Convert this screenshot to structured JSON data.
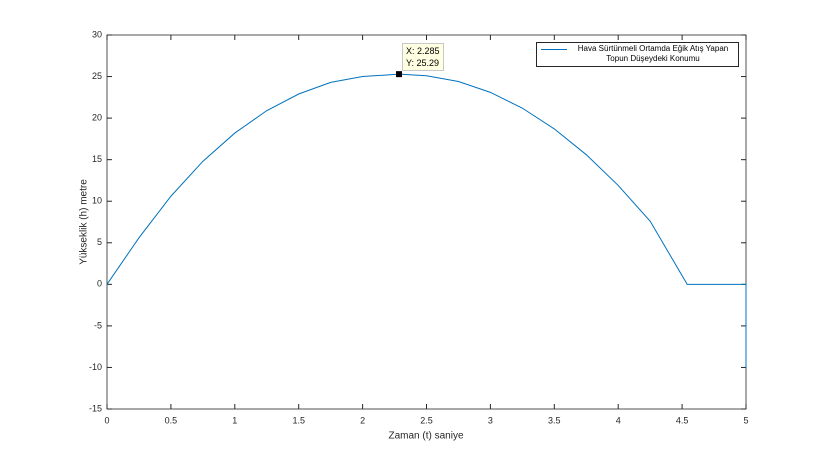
{
  "chart_data": {
    "type": "line",
    "xlabel": "Zaman (t) saniye",
    "ylabel": "Yükseklik (h) metre",
    "x": [
      0,
      0.25,
      0.5,
      0.75,
      1,
      1.25,
      1.5,
      1.75,
      2,
      2.285,
      2.5,
      2.75,
      3,
      3.25,
      3.5,
      3.75,
      4,
      4.25,
      4.54,
      4.75,
      5,
      5
    ],
    "series": [
      {
        "name": "Hava Sürtünmeli Ortamda Eğik Atış Yapan Topun Düşeydeki Konumu",
        "color": "#0072bd",
        "values": [
          0,
          5.6,
          10.6,
          14.8,
          18.2,
          20.9,
          22.9,
          24.3,
          25.0,
          25.29,
          25.1,
          24.4,
          23.1,
          21.2,
          18.7,
          15.6,
          11.9,
          7.6,
          0,
          0,
          0,
          -10
        ]
      }
    ],
    "xlim": [
      0,
      5
    ],
    "xticks": [
      0,
      0.5,
      1,
      1.5,
      2,
      2.5,
      3,
      3.5,
      4,
      4.5,
      5
    ],
    "ylim": [
      -15,
      30
    ],
    "yticks": [
      -15,
      -10,
      -5,
      0,
      5,
      10,
      15,
      20,
      25,
      30
    ],
    "datatip": {
      "x": 2.285,
      "y": 25.29,
      "x_label": "X: 2.285",
      "y_label": "Y: 25.29"
    }
  }
}
